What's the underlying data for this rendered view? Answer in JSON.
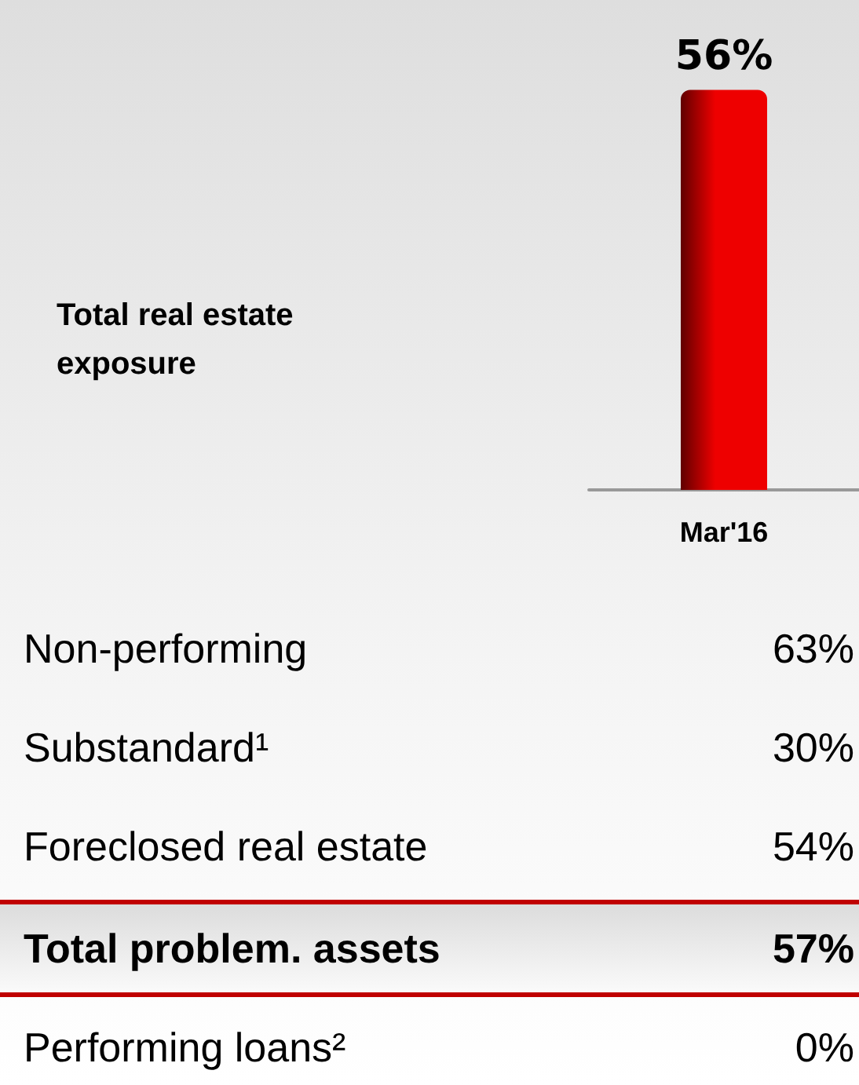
{
  "chart_data": {
    "type": "bar",
    "categories": [
      "Mar'16"
    ],
    "values": [
      56
    ],
    "color": "#ee0000",
    "value_labels": [
      "56%"
    ],
    "annotations": [
      "Total real estate exposure",
      "Non-performing",
      "63%",
      "Substandard¹",
      "30%",
      "Foreclosed real estate",
      "54%",
      "Total problem. assets",
      "57%",
      "Performing loans²",
      "0%"
    ]
  }
}
